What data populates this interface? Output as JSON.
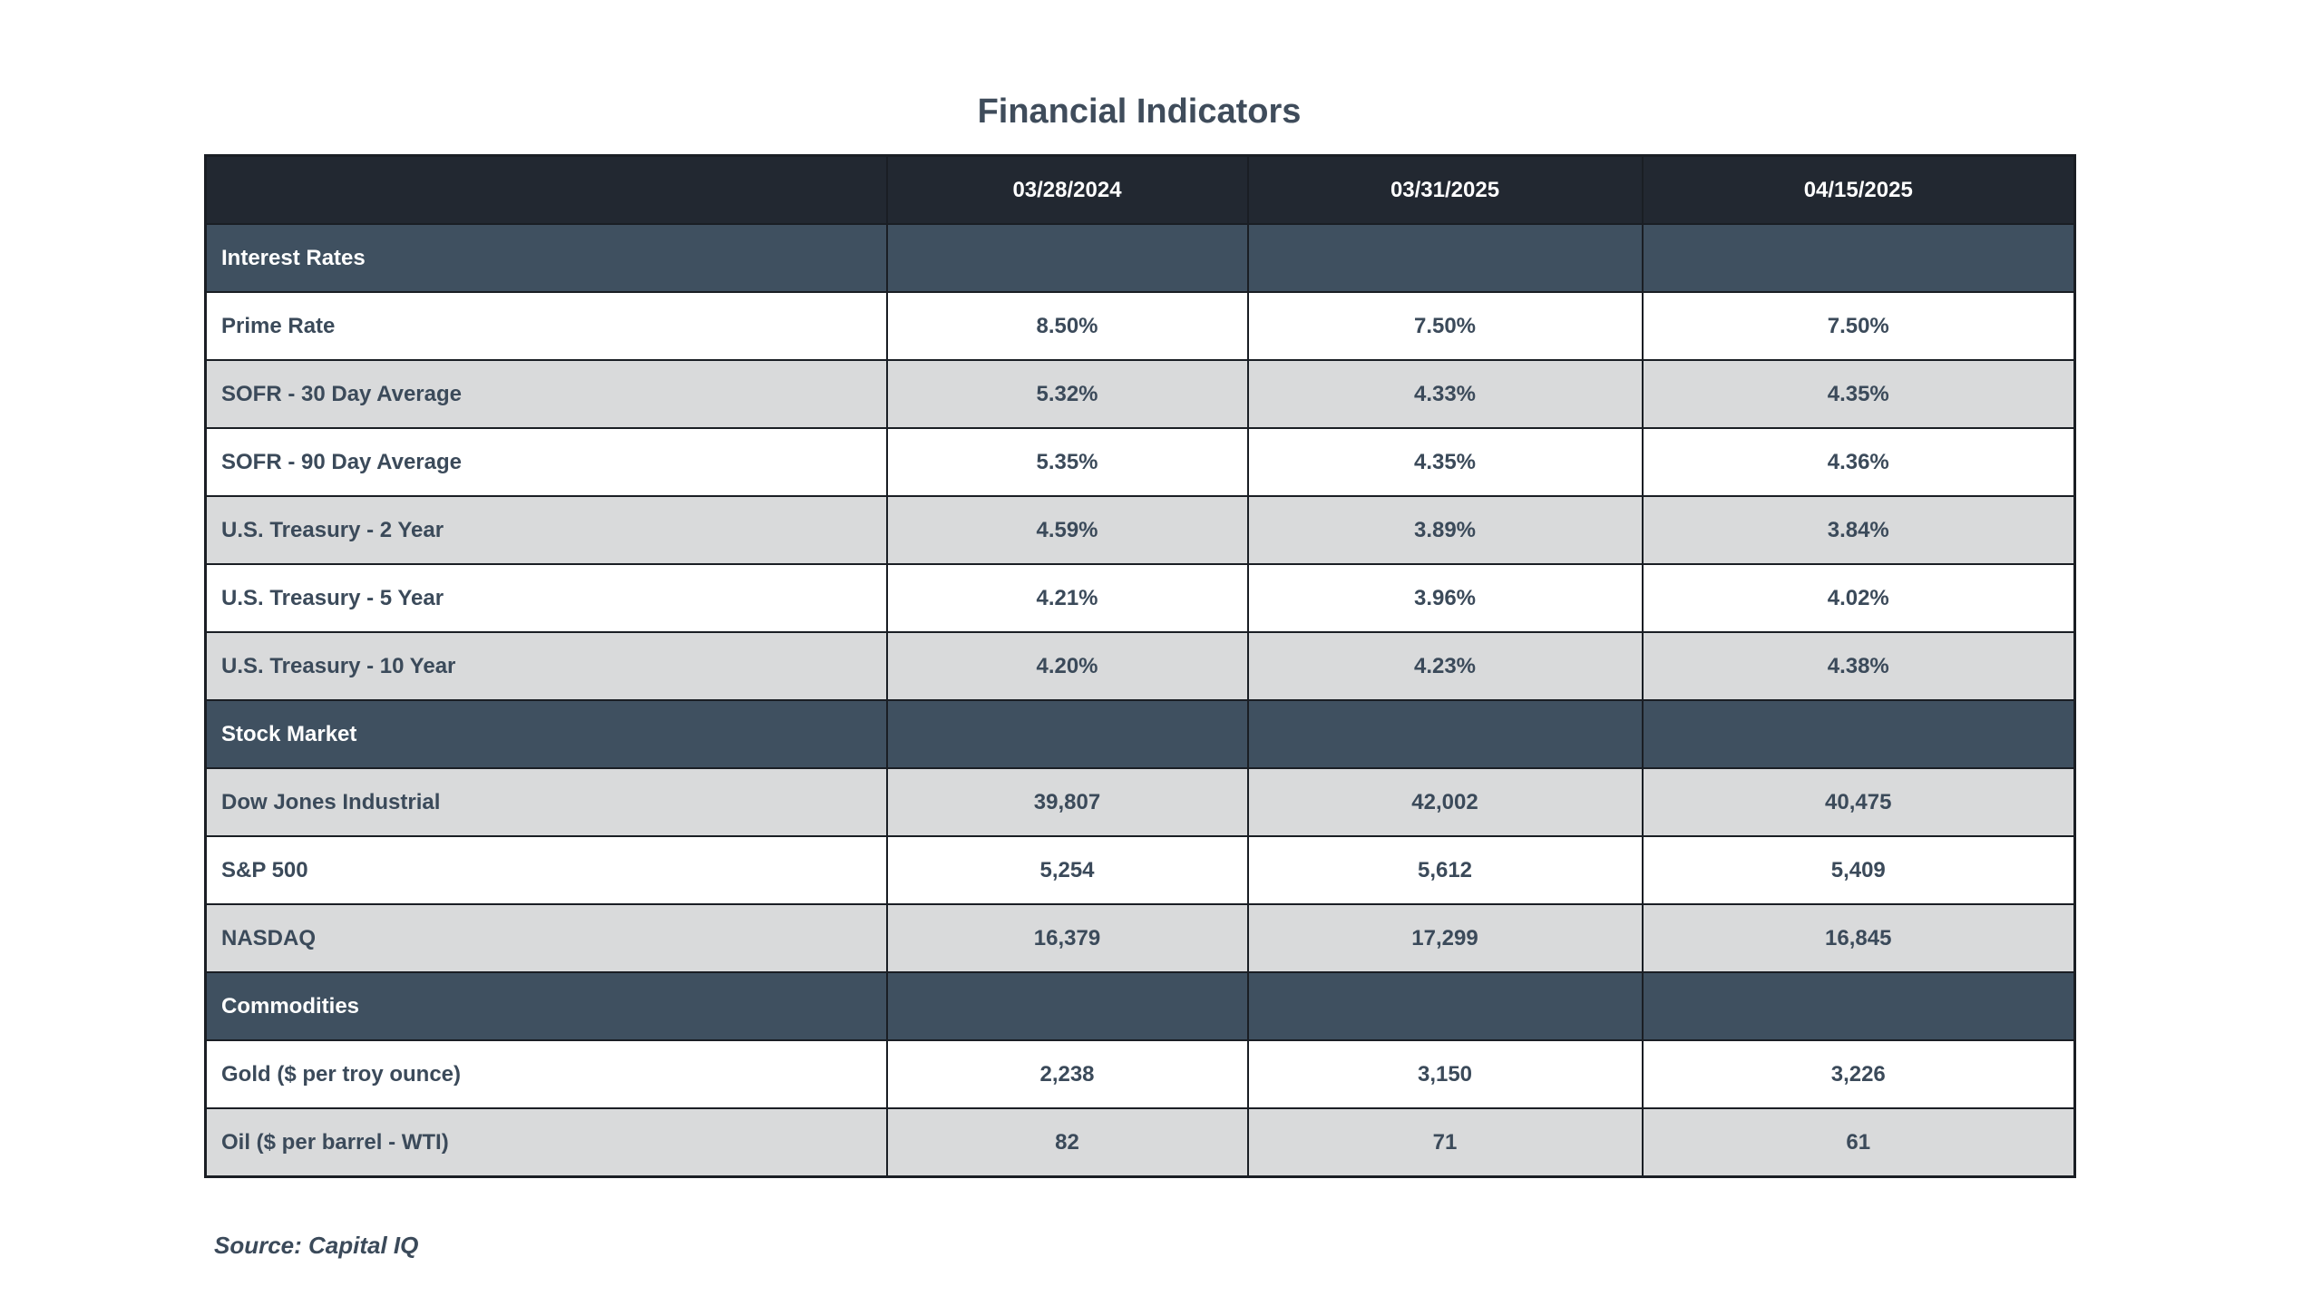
{
  "title": "Financial Indicators",
  "columns": [
    "",
    "03/28/2024",
    "03/31/2025",
    "04/15/2025"
  ],
  "sections": [
    {
      "name": "Interest Rates",
      "rows": [
        {
          "label": "Prime Rate",
          "values": [
            "8.50%",
            "7.50%",
            "7.50%"
          ]
        },
        {
          "label": "SOFR - 30 Day Average",
          "values": [
            "5.32%",
            "4.33%",
            "4.35%"
          ]
        },
        {
          "label": "SOFR - 90 Day Average",
          "values": [
            "5.35%",
            "4.35%",
            "4.36%"
          ]
        },
        {
          "label": "U.S. Treasury - 2 Year",
          "values": [
            "4.59%",
            "3.89%",
            "3.84%"
          ]
        },
        {
          "label": "U.S. Treasury - 5 Year",
          "values": [
            "4.21%",
            "3.96%",
            "4.02%"
          ]
        },
        {
          "label": "U.S. Treasury - 10 Year",
          "values": [
            "4.20%",
            "4.23%",
            "4.38%"
          ]
        }
      ]
    },
    {
      "name": "Stock Market",
      "rows": [
        {
          "label": "Dow Jones Industrial",
          "values": [
            "39,807",
            "42,002",
            "40,475"
          ]
        },
        {
          "label": "S&P 500",
          "values": [
            "5,254",
            "5,612",
            "5,409"
          ]
        },
        {
          "label": "NASDAQ",
          "values": [
            "16,379",
            "17,299",
            "16,845"
          ]
        }
      ]
    },
    {
      "name": "Commodities",
      "rows": [
        {
          "label": "Gold ($ per troy ounce)",
          "values": [
            "2,238",
            "3,150",
            "3,226"
          ]
        },
        {
          "label": "Oil ($ per barrel - WTI)",
          "values": [
            "82",
            "71",
            "61"
          ]
        }
      ]
    }
  ],
  "source": "Source: Capital IQ",
  "colors": {
    "header_bg": "#222831",
    "section_bg": "#3f5060",
    "stripe_grey": "#d9dadb",
    "text": "#3b4a5a"
  }
}
